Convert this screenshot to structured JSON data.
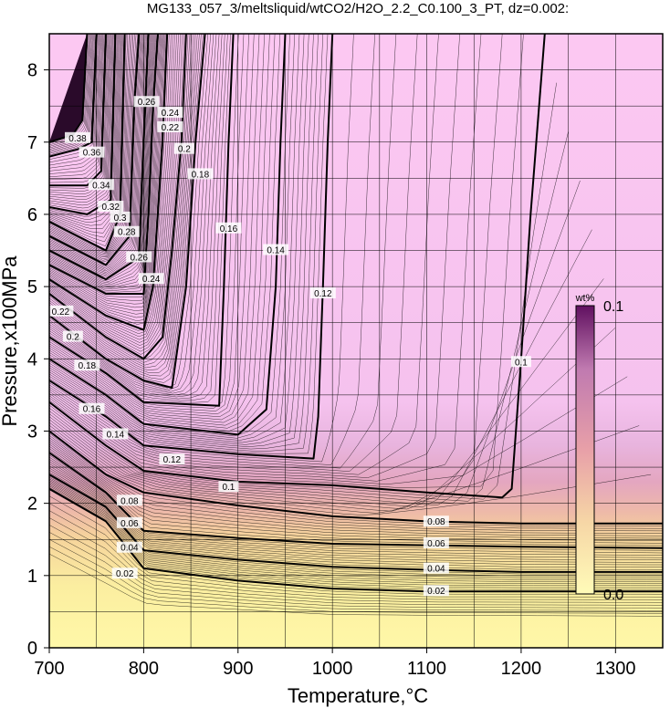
{
  "chart_data": {
    "type": "heatmap",
    "title": "MG133_057_3/meltsliquid/wtCO2/H2O_2.2_C0.100_3_PT, dz=0.002:",
    "xlabel": "Temperature,°C",
    "ylabel": "Pressure,x100MPa",
    "xlim": [
      700,
      1350
    ],
    "ylim": [
      0,
      8.5
    ],
    "xticks": [
      700,
      800,
      900,
      1000,
      1100,
      1200,
      1300
    ],
    "yticks": [
      0,
      1,
      2,
      3,
      4,
      5,
      6,
      7,
      8
    ],
    "grid": true,
    "colorbar": {
      "unit": "wt%",
      "min_label": "0.0",
      "max_label": "0.1",
      "min": 0.0,
      "max": 0.1,
      "colors": [
        "#fffbb8",
        "#f4c8a0",
        "#e8a0a8",
        "#c07ab0",
        "#601060"
      ],
      "saturated_color": "#fcc8f2"
    },
    "contour_interval": 0.002,
    "labeled_contours": [
      {
        "level": 0.02,
        "label": "0.02",
        "points": [
          [
            700,
            2.2
          ],
          [
            760,
            1.75
          ],
          [
            800,
            1.1
          ],
          [
            900,
            0.93
          ],
          [
            1000,
            0.82
          ],
          [
            1100,
            0.78
          ],
          [
            1200,
            0.78
          ],
          [
            1350,
            0.78
          ]
        ]
      },
      {
        "level": 0.04,
        "label": "0.04",
        "points": [
          [
            700,
            2.4
          ],
          [
            760,
            1.95
          ],
          [
            800,
            1.35
          ],
          [
            900,
            1.22
          ],
          [
            1000,
            1.12
          ],
          [
            1100,
            1.08
          ],
          [
            1200,
            1.05
          ],
          [
            1350,
            1.05
          ]
        ]
      },
      {
        "level": 0.06,
        "label": "0.06",
        "points": [
          [
            700,
            2.7
          ],
          [
            760,
            2.15
          ],
          [
            800,
            1.62
          ],
          [
            900,
            1.52
          ],
          [
            1000,
            1.44
          ],
          [
            1100,
            1.42
          ],
          [
            1200,
            1.4
          ],
          [
            1350,
            1.38
          ]
        ]
      },
      {
        "level": 0.08,
        "label": "0.08",
        "points": [
          [
            700,
            3.0
          ],
          [
            760,
            2.4
          ],
          [
            800,
            2.15
          ],
          [
            900,
            1.97
          ],
          [
            1000,
            1.82
          ],
          [
            1100,
            1.75
          ],
          [
            1200,
            1.72
          ],
          [
            1350,
            1.72
          ]
        ]
      },
      {
        "level": 0.1,
        "label": "0.1",
        "points": [
          [
            700,
            3.4
          ],
          [
            760,
            2.8
          ],
          [
            800,
            2.45
          ],
          [
            900,
            2.3
          ],
          [
            1000,
            2.25
          ],
          [
            1100,
            2.15
          ],
          [
            1180,
            2.08
          ],
          [
            1190,
            2.2
          ],
          [
            1200,
            4.0
          ],
          [
            1210,
            6.0
          ],
          [
            1225,
            8.5
          ]
        ]
      },
      {
        "level": 0.12,
        "label": "0.12",
        "points": [
          [
            700,
            3.7
          ],
          [
            760,
            3.2
          ],
          [
            800,
            2.8
          ],
          [
            900,
            2.68
          ],
          [
            980,
            2.62
          ],
          [
            985,
            3.2
          ],
          [
            990,
            5.0
          ],
          [
            995,
            7.0
          ],
          [
            1000,
            8.5
          ]
        ]
      },
      {
        "level": 0.14,
        "label": "0.14",
        "points": [
          [
            700,
            4.0
          ],
          [
            760,
            3.5
          ],
          [
            800,
            3.1
          ],
          [
            900,
            2.95
          ],
          [
            930,
            3.3
          ],
          [
            940,
            5.0
          ],
          [
            945,
            7.0
          ],
          [
            950,
            8.5
          ]
        ]
      },
      {
        "level": 0.16,
        "label": "0.16",
        "points": [
          [
            700,
            4.3
          ],
          [
            760,
            3.8
          ],
          [
            800,
            3.4
          ],
          [
            880,
            3.35
          ],
          [
            885,
            5.0
          ],
          [
            890,
            7.0
          ],
          [
            895,
            8.5
          ]
        ]
      },
      {
        "level": 0.18,
        "label": "0.18",
        "points": [
          [
            700,
            4.6
          ],
          [
            760,
            4.0
          ],
          [
            800,
            3.7
          ],
          [
            830,
            3.6
          ],
          [
            845,
            5.0
          ],
          [
            855,
            7.0
          ],
          [
            865,
            8.5
          ]
        ]
      },
      {
        "level": 0.2,
        "label": "0.2",
        "points": [
          [
            700,
            4.9
          ],
          [
            760,
            4.3
          ],
          [
            800,
            4.0
          ],
          [
            820,
            4.3
          ],
          [
            830,
            5.5
          ],
          [
            840,
            7.0
          ],
          [
            845,
            8.5
          ]
        ]
      },
      {
        "level": 0.22,
        "label": "0.22",
        "points": [
          [
            700,
            5.1
          ],
          [
            760,
            4.6
          ],
          [
            800,
            4.4
          ],
          [
            810,
            5.0
          ],
          [
            820,
            7.0
          ],
          [
            825,
            8.5
          ]
        ]
      },
      {
        "level": 0.24,
        "label": "0.24",
        "points": [
          [
            700,
            5.3
          ],
          [
            760,
            4.9
          ],
          [
            800,
            4.9
          ],
          [
            805,
            6.0
          ],
          [
            810,
            7.5
          ],
          [
            815,
            8.5
          ]
        ]
      },
      {
        "level": 0.26,
        "label": "0.26",
        "points": [
          [
            700,
            5.5
          ],
          [
            760,
            5.1
          ],
          [
            795,
            5.4
          ],
          [
            800,
            7.0
          ],
          [
            805,
            8.5
          ]
        ]
      },
      {
        "level": 0.28,
        "label": "0.28",
        "points": [
          [
            700,
            5.7
          ],
          [
            760,
            5.3
          ],
          [
            785,
            5.7
          ],
          [
            790,
            7.5
          ],
          [
            795,
            8.5
          ]
        ]
      },
      {
        "level": 0.3,
        "label": "0.3",
        "points": [
          [
            700,
            5.9
          ],
          [
            760,
            5.5
          ],
          [
            775,
            6.0
          ],
          [
            780,
            8.5
          ]
        ]
      },
      {
        "level": 0.32,
        "label": "0.32",
        "points": [
          [
            700,
            6.1
          ],
          [
            740,
            6.0
          ],
          [
            765,
            6.2
          ],
          [
            770,
            8.5
          ]
        ]
      },
      {
        "level": 0.34,
        "label": "0.34",
        "points": [
          [
            700,
            6.4
          ],
          [
            740,
            6.4
          ],
          [
            755,
            6.6
          ],
          [
            760,
            8.5
          ]
        ]
      },
      {
        "level": 0.36,
        "label": "0.36",
        "points": [
          [
            700,
            6.8
          ],
          [
            730,
            6.9
          ],
          [
            745,
            7.0
          ],
          [
            750,
            8.5
          ]
        ]
      },
      {
        "level": 0.38,
        "label": "0.38",
        "points": [
          [
            700,
            7.0
          ],
          [
            725,
            7.1
          ],
          [
            735,
            7.3
          ],
          [
            740,
            8.5
          ]
        ]
      }
    ],
    "contour_label_positions": [
      {
        "label": "0.02",
        "x": 780,
        "y": 1.02
      },
      {
        "label": "0.02",
        "x": 1110,
        "y": 0.78
      },
      {
        "label": "0.04",
        "x": 785,
        "y": 1.38
      },
      {
        "label": "0.04",
        "x": 1110,
        "y": 1.09
      },
      {
        "label": "0.06",
        "x": 785,
        "y": 1.72
      },
      {
        "label": "0.06",
        "x": 1110,
        "y": 1.44
      },
      {
        "label": "0.08",
        "x": 785,
        "y": 2.03
      },
      {
        "label": "0.08",
        "x": 1110,
        "y": 1.74
      },
      {
        "label": "0.1",
        "x": 890,
        "y": 2.22
      },
      {
        "label": "0.1",
        "x": 1200,
        "y": 3.95
      },
      {
        "label": "0.12",
        "x": 830,
        "y": 2.6
      },
      {
        "label": "0.12",
        "x": 990,
        "y": 4.9
      },
      {
        "label": "0.14",
        "x": 770,
        "y": 2.95
      },
      {
        "label": "0.14",
        "x": 940,
        "y": 5.5
      },
      {
        "label": "0.16",
        "x": 745,
        "y": 3.3
      },
      {
        "label": "0.16",
        "x": 890,
        "y": 5.8
      },
      {
        "label": "0.18",
        "x": 740,
        "y": 3.9
      },
      {
        "label": "0.18",
        "x": 860,
        "y": 6.55
      },
      {
        "label": "0.2",
        "x": 725,
        "y": 4.3
      },
      {
        "label": "0.2",
        "x": 843,
        "y": 6.9
      },
      {
        "label": "0.22",
        "x": 712,
        "y": 4.65
      },
      {
        "label": "0.22",
        "x": 828,
        "y": 7.2
      },
      {
        "label": "0.24",
        "x": 808,
        "y": 5.1
      },
      {
        "label": "0.24",
        "x": 828,
        "y": 7.4
      },
      {
        "label": "0.26",
        "x": 795,
        "y": 5.4
      },
      {
        "label": "0.26",
        "x": 803,
        "y": 7.55
      },
      {
        "label": "0.28",
        "x": 782,
        "y": 5.75
      },
      {
        "label": "0.3",
        "x": 775,
        "y": 5.95
      },
      {
        "label": "0.32",
        "x": 765,
        "y": 6.1
      },
      {
        "label": "0.34",
        "x": 755,
        "y": 6.4
      },
      {
        "label": "0.36",
        "x": 745,
        "y": 6.85
      },
      {
        "label": "0.38",
        "x": 730,
        "y": 7.05
      }
    ]
  }
}
